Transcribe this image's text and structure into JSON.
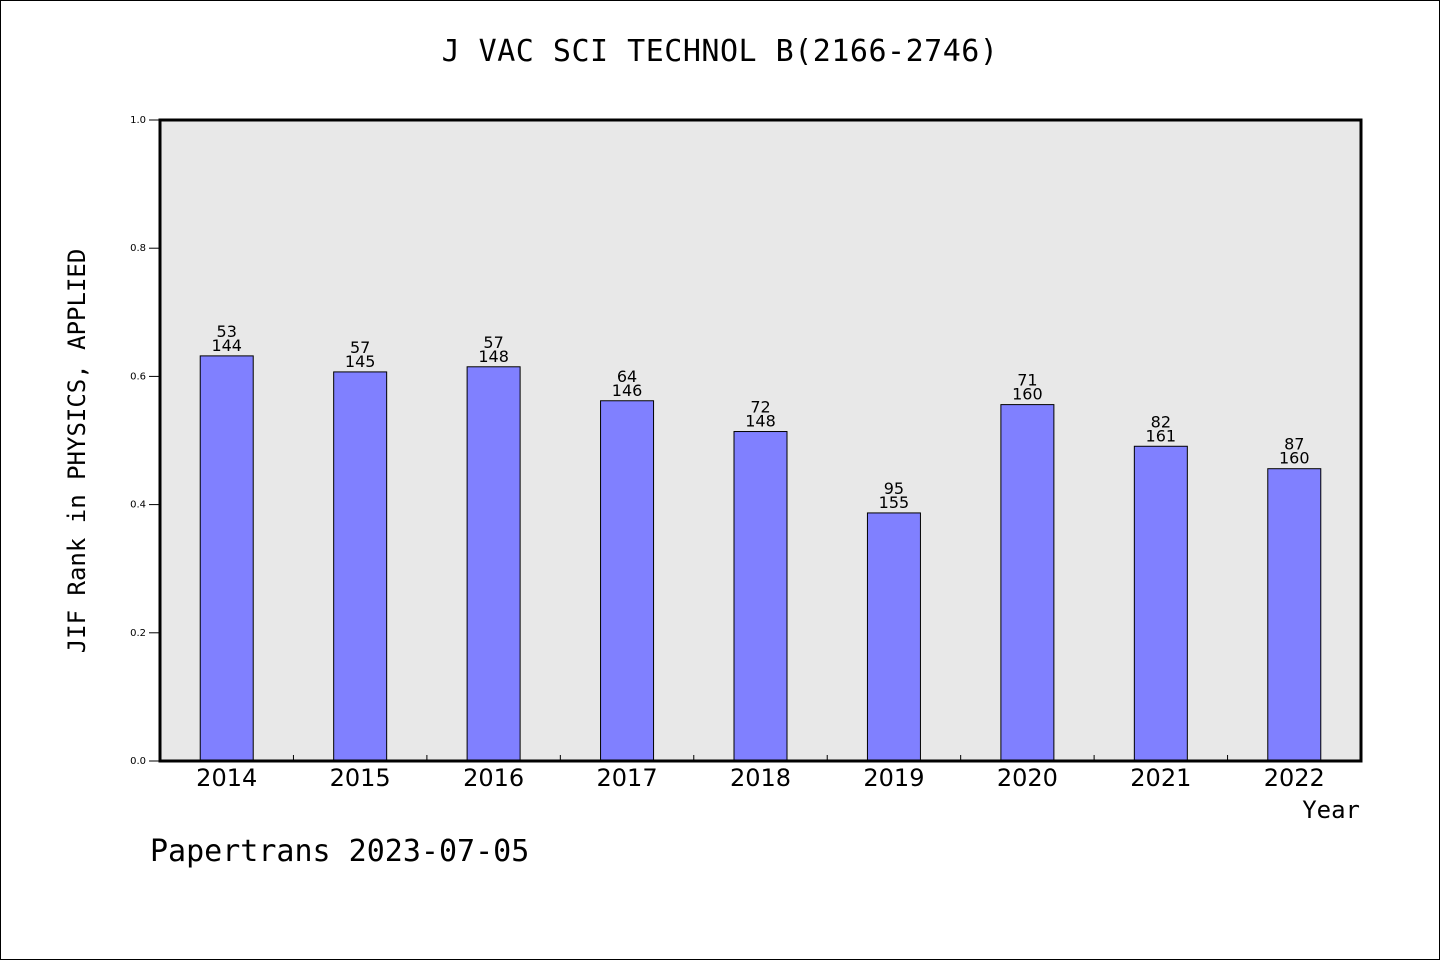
{
  "chart_data": {
    "type": "bar",
    "title": "J VAC SCI TECHNOL B(2166-2746)",
    "xlabel": "Year",
    "ylabel": "JIF Rank in PHYSICS, APPLIED",
    "categories": [
      "2014",
      "2015",
      "2016",
      "2017",
      "2018",
      "2019",
      "2020",
      "2021",
      "2022"
    ],
    "values": [
      0.632,
      0.607,
      0.615,
      0.562,
      0.514,
      0.387,
      0.556,
      0.491,
      0.456
    ],
    "ranks": [
      "53",
      "57",
      "57",
      "64",
      "72",
      "95",
      "71",
      "82",
      "87"
    ],
    "totals": [
      "144",
      "145",
      "148",
      "146",
      "148",
      "155",
      "160",
      "161",
      "160"
    ],
    "ylim": [
      0,
      1.0
    ],
    "yticks": [
      "0.0",
      "0.2",
      "0.4",
      "0.6",
      "0.8",
      "1.0"
    ],
    "grid": false,
    "bar_color": "#8080ff",
    "plot_background": "#e8e8e8"
  },
  "footer": "Papertrans 2023-07-05"
}
